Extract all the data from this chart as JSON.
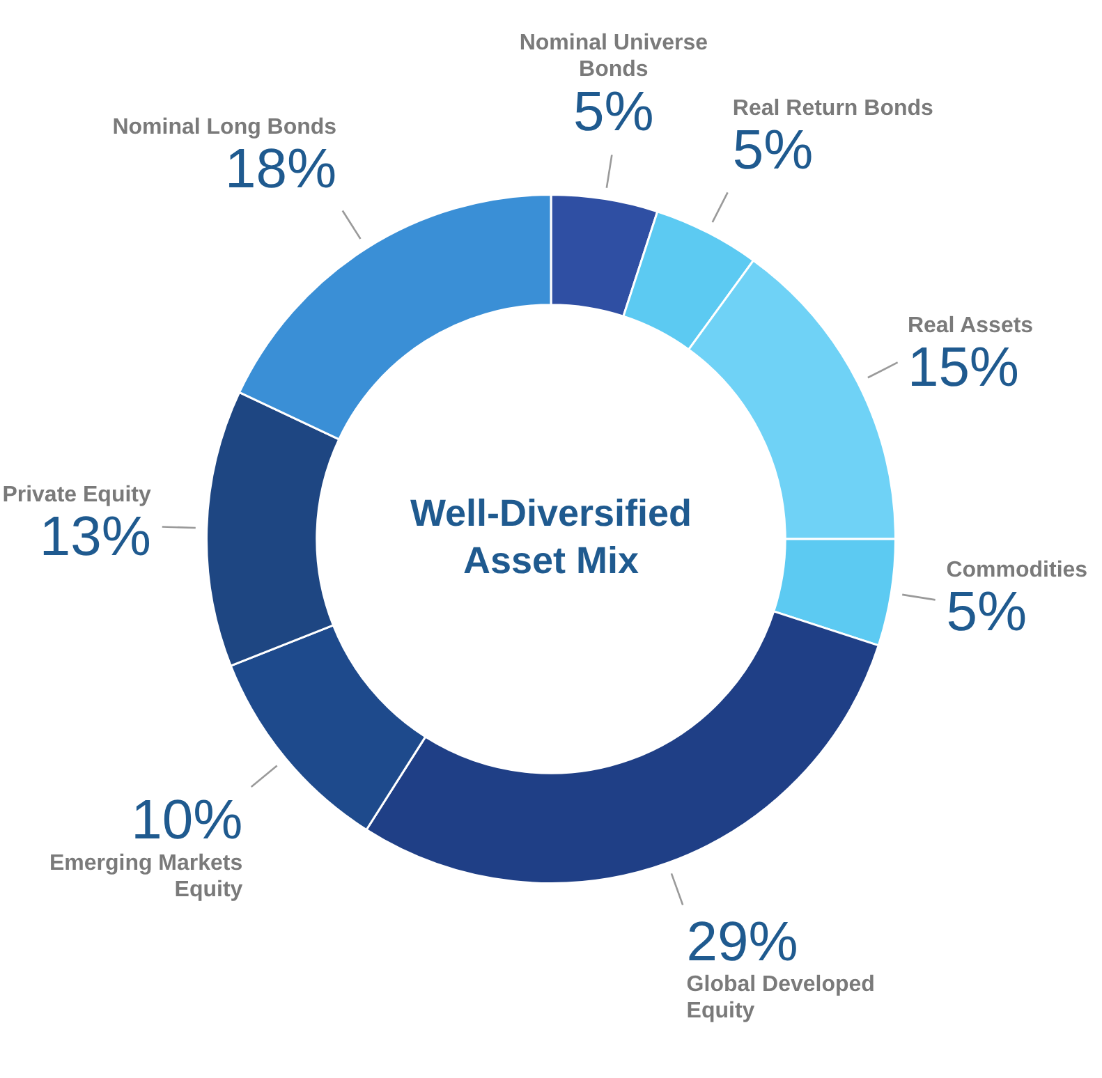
{
  "chart_data": {
    "type": "donut",
    "title": "Well-Diversified Asset Mix",
    "categories": [
      "Nominal Universe Bonds",
      "Real Return Bonds",
      "Real Assets",
      "Commodities",
      "Global Developed Equity",
      "Emerging Markets Equity",
      "Private Equity",
      "Nominal Long Bonds"
    ],
    "values": [
      5,
      5,
      15,
      5,
      29,
      10,
      13,
      18
    ],
    "value_labels": [
      "5%",
      "5%",
      "15%",
      "5%",
      "29%",
      "10%",
      "13%",
      "18%"
    ],
    "colors": [
      "#2f4fa3",
      "#5ccaf2",
      "#6fd2f6",
      "#5ccaf2",
      "#1f3f86",
      "#1e4a8c",
      "#1e4682",
      "#3a8fd6"
    ],
    "legend": false
  }
}
